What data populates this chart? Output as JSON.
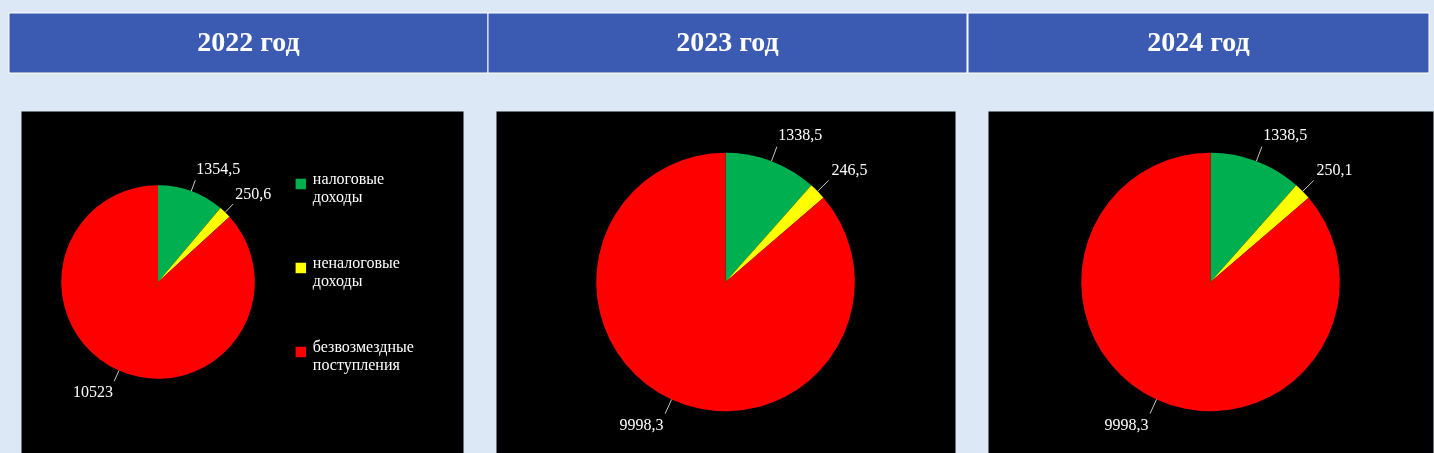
{
  "chart_data": [
    {
      "type": "pie",
      "title": "2022 год",
      "categories": [
        "налоговые доходы",
        "неналоговые доходы",
        "безвозмездные поступления"
      ],
      "values": [
        1354.5,
        250.6,
        10523
      ],
      "colors": [
        "#00b050",
        "#ffff00",
        "#ff0000"
      ],
      "value_labels": [
        "1354,5",
        "250,6",
        "10523"
      ],
      "legend": "right"
    },
    {
      "type": "pie",
      "title": "2023 год",
      "categories": [
        null,
        null,
        null
      ],
      "values": [
        1338.5,
        246.5,
        9998.3
      ],
      "colors": [
        "#00b050",
        "#ffff00",
        "#ff0000"
      ],
      "value_labels": [
        "1338,5",
        "246,5",
        "9998,3"
      ],
      "legend": false
    },
    {
      "type": "pie",
      "title": "2024 год",
      "categories": [
        null,
        null,
        null
      ],
      "values": [
        1338.5,
        250.1,
        9998.3
      ],
      "colors": [
        "#00b050",
        "#ffff00",
        "#ff0000"
      ],
      "value_labels": [
        "1338,5",
        "250,1",
        "9998,3"
      ],
      "legend": false
    }
  ]
}
